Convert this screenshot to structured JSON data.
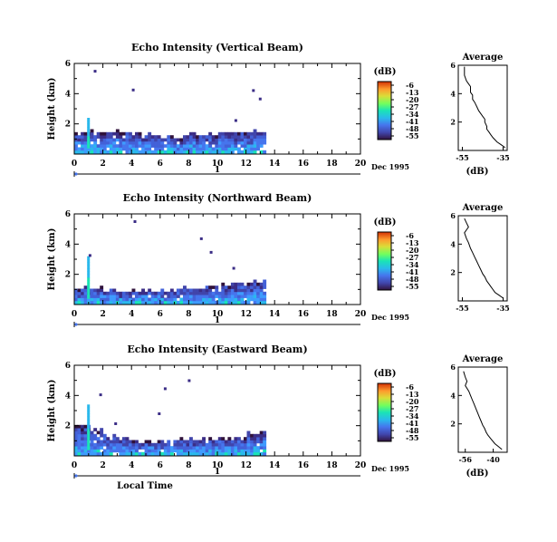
{
  "chart_data": [
    {
      "type": "heatmap",
      "title": "Echo Intensity (Vertical Beam)",
      "ylabel": "Height (km)",
      "xlim": [
        0,
        20
      ],
      "ylim": [
        0,
        6
      ],
      "xticks": [
        "0",
        "2",
        "4",
        "6",
        "8",
        "10",
        "12",
        "14",
        "16",
        "18",
        "20"
      ],
      "yticks": [
        "2",
        "4",
        "6"
      ],
      "date_label": "Dec 1995",
      "day_label": "1",
      "colorbar": {
        "unit": "(dB)",
        "ticks": [
          "-6",
          "-13",
          "-20",
          "-27",
          "-34",
          "-41",
          "-48",
          "-55"
        ]
      },
      "data_end_hour": 13.4,
      "echo_top_km": [
        1.3,
        1.4,
        1.4,
        1.3,
        1.2,
        1.2,
        1.1,
        1.1,
        1.2,
        1.2,
        1.3,
        1.3,
        1.4,
        1.4
      ],
      "cloud_spike": {
        "x": 0.9,
        "top_km": 2.2
      },
      "profile": {
        "title": "Average",
        "xlabel": "(dB)",
        "xticks": [
          "-55",
          "-35"
        ],
        "xlim": [
          -57,
          -33
        ],
        "yticks": [
          "2",
          "4",
          "6"
        ],
        "ylim": [
          0,
          6
        ],
        "x": [
          -54,
          -54,
          -53,
          -52,
          -51,
          -51,
          -50,
          -50,
          -49,
          -48,
          -47,
          -46,
          -45,
          -44,
          -44,
          -43,
          -43,
          -42,
          -41,
          -40,
          -38,
          -36,
          -34
        ],
        "y": [
          5.9,
          5.3,
          4.9,
          4.7,
          4.5,
          4.1,
          3.9,
          3.6,
          3.4,
          3.1,
          2.8,
          2.6,
          2.4,
          2.2,
          2.0,
          1.7,
          1.5,
          1.3,
          1.1,
          0.9,
          0.6,
          0.4,
          0.2
        ]
      }
    },
    {
      "type": "heatmap",
      "title": "Echo Intensity (Northward Beam)",
      "ylabel": "Height (km)",
      "xlim": [
        0,
        20
      ],
      "ylim": [
        0,
        6
      ],
      "xticks": [
        "0",
        "2",
        "4",
        "6",
        "8",
        "10",
        "12",
        "14",
        "16",
        "18",
        "20"
      ],
      "yticks": [
        "2",
        "4",
        "6"
      ],
      "date_label": "Dec 1995",
      "day_label": "1",
      "colorbar": {
        "unit": "(dB)",
        "ticks": [
          "-6",
          "-13",
          "-20",
          "-27",
          "-34",
          "-41",
          "-48",
          "-55"
        ]
      },
      "data_end_hour": 13.4,
      "echo_top_km": [
        1.0,
        1.0,
        0.9,
        0.8,
        0.8,
        0.9,
        0.9,
        1.0,
        1.0,
        1.1,
        1.2,
        1.3,
        1.4,
        1.5
      ],
      "cloud_spike": {
        "x": 0.9,
        "top_km": 3.2
      },
      "profile": {
        "title": "Average",
        "xlabel": "",
        "xticks": [
          "-55",
          "-35"
        ],
        "xlim": [
          -57,
          -33
        ],
        "yticks": [
          "2",
          "4",
          "6"
        ],
        "ylim": [
          0,
          6
        ],
        "x": [
          -54,
          -53,
          -52,
          -54,
          -53,
          -52,
          -51,
          -50,
          -49,
          -48,
          -47,
          -46,
          -45,
          -44,
          -43,
          -42,
          -41,
          -40,
          -39,
          -37,
          -35
        ],
        "y": [
          5.8,
          5.5,
          5.2,
          4.8,
          4.4,
          4.1,
          3.7,
          3.4,
          3.1,
          2.8,
          2.5,
          2.2,
          1.9,
          1.7,
          1.4,
          1.2,
          1.0,
          0.8,
          0.6,
          0.4,
          0.2
        ]
      }
    },
    {
      "type": "heatmap",
      "title": "Echo Intensity (Eastward Beam)",
      "ylabel": "Height (km)",
      "xlim": [
        0,
        20
      ],
      "ylim": [
        0,
        6
      ],
      "xticks": [
        "0",
        "2",
        "4",
        "6",
        "8",
        "10",
        "12",
        "14",
        "16",
        "18",
        "20"
      ],
      "yticks": [
        "2",
        "4",
        "6"
      ],
      "date_label": "Dec 1995",
      "day_label": "1",
      "xlabel": "Local Time",
      "colorbar": {
        "unit": "(dB)",
        "ticks": [
          "-6",
          "-13",
          "-20",
          "-27",
          "-34",
          "-41",
          "-48",
          "-55"
        ]
      },
      "data_end_hour": 13.4,
      "echo_top_km": [
        2.0,
        1.6,
        1.3,
        1.0,
        0.9,
        0.9,
        0.9,
        1.0,
        1.0,
        1.0,
        1.1,
        1.2,
        1.4,
        1.6
      ],
      "cloud_spike": {
        "x": 0.9,
        "top_km": 3.4
      },
      "profile": {
        "title": "Average",
        "xlabel": "(dB)",
        "xticks": [
          "-56",
          "-40"
        ],
        "xlim": [
          -60,
          -32
        ],
        "yticks": [
          "2",
          "4",
          "6"
        ],
        "ylim": [
          0,
          6
        ],
        "x": [
          -57,
          -56,
          -55,
          -56,
          -54,
          -53,
          -52,
          -51,
          -50,
          -49,
          -48,
          -47,
          -46,
          -45,
          -44,
          -43,
          -41,
          -39,
          -37,
          -35
        ],
        "y": [
          5.7,
          5.3,
          5.0,
          4.7,
          4.3,
          4.0,
          3.7,
          3.4,
          3.1,
          2.8,
          2.5,
          2.2,
          1.9,
          1.7,
          1.4,
          1.2,
          0.9,
          0.6,
          0.4,
          0.2
        ]
      }
    }
  ]
}
